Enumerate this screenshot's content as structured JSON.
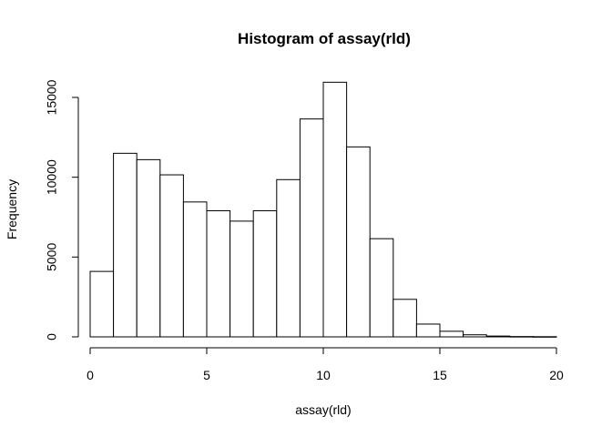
{
  "chart_data": {
    "type": "bar",
    "subtype": "histogram",
    "title": "Histogram of assay(rld)",
    "xlabel": "assay(rld)",
    "ylabel": "Frequency",
    "bin_width": 1,
    "bins": [
      {
        "x0": 0,
        "x1": 1,
        "count": 4100
      },
      {
        "x0": 1,
        "x1": 2,
        "count": 11500
      },
      {
        "x0": 2,
        "x1": 3,
        "count": 11100
      },
      {
        "x0": 3,
        "x1": 4,
        "count": 10150
      },
      {
        "x0": 4,
        "x1": 5,
        "count": 8450
      },
      {
        "x0": 5,
        "x1": 6,
        "count": 7900
      },
      {
        "x0": 6,
        "x1": 7,
        "count": 7250
      },
      {
        "x0": 7,
        "x1": 8,
        "count": 7900
      },
      {
        "x0": 8,
        "x1": 9,
        "count": 9850
      },
      {
        "x0": 9,
        "x1": 10,
        "count": 13650
      },
      {
        "x0": 10,
        "x1": 11,
        "count": 15950
      },
      {
        "x0": 11,
        "x1": 12,
        "count": 11900
      },
      {
        "x0": 12,
        "x1": 13,
        "count": 6150
      },
      {
        "x0": 13,
        "x1": 14,
        "count": 2350
      },
      {
        "x0": 14,
        "x1": 15,
        "count": 800
      },
      {
        "x0": 15,
        "x1": 16,
        "count": 350
      },
      {
        "x0": 16,
        "x1": 17,
        "count": 130
      },
      {
        "x0": 17,
        "x1": 18,
        "count": 50
      },
      {
        "x0": 18,
        "x1": 19,
        "count": 20
      },
      {
        "x0": 19,
        "x1": 20,
        "count": 10
      }
    ],
    "xlim": [
      0,
      20
    ],
    "ylim": [
      0,
      15000
    ],
    "x_ticks": [
      0,
      5,
      10,
      15,
      20
    ],
    "y_ticks": [
      0,
      5000,
      10000,
      15000
    ],
    "x_tick_labels": [
      "0",
      "5",
      "10",
      "15",
      "20"
    ],
    "y_tick_labels": [
      "0",
      "5000",
      "10000",
      "15000"
    ],
    "bar_fill": "#ffffff",
    "bar_stroke": "#000000",
    "grid": false,
    "legend": "none"
  }
}
